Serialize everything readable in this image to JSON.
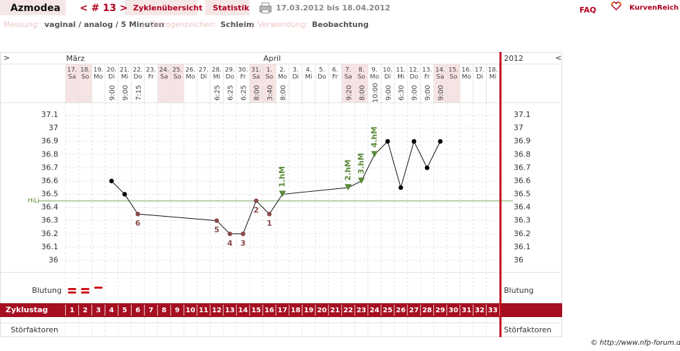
{
  "header": {
    "user": "Azmodea",
    "cycle_nav": "< # 13 >",
    "tabs": [
      "Zyklenübersicht",
      "Statistik"
    ],
    "period": "17.03.2012 bis 18.04.2012",
    "faq": "FAQ",
    "logo": "KurvenReich"
  },
  "info": [
    {
      "label": "Messung:",
      "value": "vaginal / analog / 5 Minuten"
    },
    {
      "label": "Östrogenzeichen:",
      "value": "Schleim"
    },
    {
      "label": "Verwendung:",
      "value": "Beobachtung"
    }
  ],
  "separator": "|",
  "chart_data": {
    "type": "line",
    "nav_prev": ">",
    "nav_next": "<",
    "year": "2012",
    "months": [
      {
        "name": "März",
        "day": 1
      },
      {
        "name": "April",
        "day": 16
      }
    ],
    "dates": [
      "17.",
      "18.",
      "19.",
      "20.",
      "21.",
      "22.",
      "23.",
      "24.",
      "25.",
      "26.",
      "27.",
      "28.",
      "29.",
      "30.",
      "31.",
      "1.",
      "2.",
      "3.",
      "4.",
      "5.",
      "6.",
      "7.",
      "8.",
      "9.",
      "10.",
      "11.",
      "12.",
      "13.",
      "14.",
      "15.",
      "16.",
      "17.",
      "18."
    ],
    "weekdays": [
      "Sa",
      "So",
      "Mo",
      "Di",
      "Mi",
      "Do",
      "Fr",
      "Sa",
      "So",
      "Mo",
      "Di",
      "Mi",
      "Do",
      "Fr",
      "Sa",
      "So",
      "Mo",
      "Di",
      "Mi",
      "Do",
      "Fr",
      "Sa",
      "So",
      "Mo",
      "Di",
      "Mi",
      "Do",
      "Fr",
      "Sa",
      "So",
      "Mo",
      "Di",
      "Mi"
    ],
    "x": [
      4,
      5,
      6,
      12,
      13,
      14,
      15,
      16,
      17,
      22,
      23,
      24,
      25,
      26,
      27,
      28,
      29
    ],
    "values": [
      36.6,
      36.5,
      36.35,
      36.3,
      36.2,
      36.2,
      36.45,
      36.35,
      36.5,
      36.55,
      36.6,
      36.8,
      36.9,
      36.55,
      36.9,
      36.7,
      36.9
    ],
    "times": [
      "9:00",
      "9:00",
      "7:15",
      "6:25",
      "6:25",
      "6:25",
      "8:00",
      "3:40",
      "8:00",
      "9:20",
      "8:00",
      "10:00",
      "9:00",
      "6:30",
      "9:00",
      "9:00",
      "9:00"
    ],
    "low_labels": [
      null,
      null,
      6,
      5,
      4,
      3,
      2,
      1,
      null,
      null,
      null,
      null,
      null,
      null,
      null,
      null,
      null
    ],
    "high_labels": [
      null,
      null,
      null,
      null,
      null,
      null,
      null,
      null,
      "1.hM",
      "2.hM",
      "3.hM",
      "4.hM",
      null,
      null,
      null,
      null,
      null
    ],
    "xlim": [
      0.5,
      33.5
    ],
    "ylim": [
      35.9,
      37.2
    ],
    "yticks": [
      37.1,
      37,
      36.9,
      36.8,
      36.7,
      36.6,
      36.5,
      36.4,
      36.3,
      36.2,
      36.1,
      36
    ],
    "grid": true,
    "hili": {
      "label": "HiLi",
      "value": 36.45
    },
    "bleeding": {
      "label": "Blutung",
      "x": [
        1,
        2,
        3
      ],
      "values": [
        2,
        2,
        1
      ]
    },
    "cycle_days": {
      "label": "Zyklustag",
      "values": [
        1,
        2,
        3,
        4,
        5,
        6,
        7,
        8,
        9,
        10,
        11,
        12,
        13,
        14,
        15,
        16,
        17,
        18,
        19,
        20,
        21,
        22,
        23,
        24,
        25,
        26,
        27,
        28,
        29,
        30,
        31,
        32,
        33
      ]
    },
    "disturbances": {
      "label": "Störfaktoren"
    }
  },
  "copyright": "© http://www.nfp-forum.de"
}
